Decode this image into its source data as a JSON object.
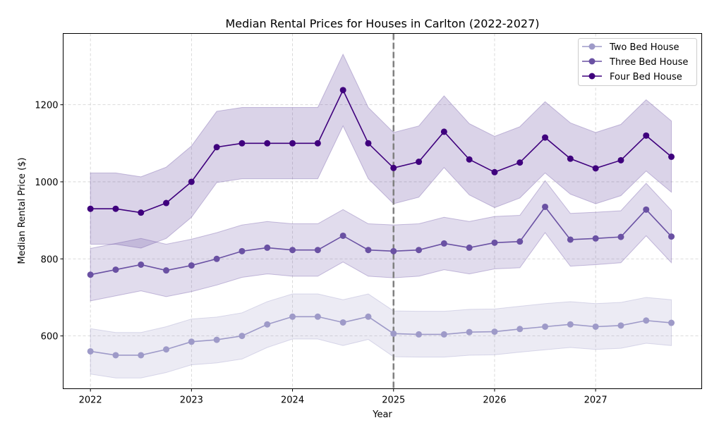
{
  "chart_data": {
    "type": "line",
    "title": "Median Rental Prices for Houses in Carlton (2022-2027)",
    "xlabel": "Year",
    "ylabel": "Median Rental Price ($)",
    "xlim": [
      2021.73,
      2028.05
    ],
    "ylim": [
      463,
      1385
    ],
    "x_ticks": [
      2022,
      2023,
      2024,
      2025,
      2026,
      2027
    ],
    "y_ticks": [
      600,
      800,
      1000,
      1200
    ],
    "grid": true,
    "legend_position": "top-right",
    "reference_line": {
      "x": 2025,
      "style": "dashed",
      "color": "#808080"
    },
    "x": [
      2022.0,
      2022.25,
      2022.5,
      2022.75,
      2023.0,
      2023.25,
      2023.5,
      2023.75,
      2024.0,
      2024.25,
      2024.5,
      2024.75,
      2025.0,
      2025.25,
      2025.5,
      2025.75,
      2026.0,
      2026.25,
      2026.5,
      2026.75,
      2027.0,
      2027.25,
      2027.5,
      2027.75
    ],
    "series": [
      {
        "name": "Two Bed House",
        "color": "#9e9ac8",
        "values": [
          560,
          550,
          550,
          565,
          585,
          590,
          600,
          630,
          650,
          650,
          635,
          650,
          606,
          604,
          604,
          610,
          611,
          618,
          624,
          630,
          624,
          627,
          640,
          634
        ],
        "lower": [
          501,
          491,
          491,
          505,
          525,
          530,
          540,
          570,
          592,
          592,
          575,
          591,
          546,
          545,
          545,
          550,
          551,
          558,
          564,
          570,
          565,
          568,
          581,
          575
        ],
        "upper": [
          619,
          609,
          609,
          624,
          644,
          649,
          660,
          689,
          709,
          709,
          694,
          709,
          665,
          664,
          664,
          669,
          670,
          677,
          684,
          689,
          684,
          687,
          700,
          694
        ]
      },
      {
        "name": "Three Bed House",
        "color": "#6a51a3",
        "values": [
          759,
          772,
          785,
          770,
          783,
          800,
          820,
          829,
          823,
          823,
          860,
          823,
          820,
          823,
          840,
          829,
          842,
          845,
          935,
          850,
          853,
          857,
          928,
          858
        ],
        "lower": [
          691,
          704,
          717,
          702,
          715,
          732,
          752,
          761,
          755,
          755,
          792,
          755,
          751,
          755,
          772,
          761,
          774,
          777,
          868,
          781,
          785,
          790,
          860,
          790
        ],
        "upper": [
          827,
          840,
          853,
          838,
          851,
          868,
          888,
          897,
          891,
          891,
          928,
          891,
          888,
          891,
          908,
          897,
          910,
          913,
          1003,
          918,
          921,
          925,
          996,
          926
        ]
      },
      {
        "name": "Four Bed House",
        "color": "#3f007d",
        "fill_color": "#6a51a3",
        "values": [
          930,
          930,
          920,
          945,
          1000,
          1090,
          1100,
          1100,
          1100,
          1100,
          1238,
          1100,
          1036,
          1052,
          1130,
          1058,
          1025,
          1050,
          1115,
          1060,
          1035,
          1056,
          1120,
          1065
        ],
        "lower": [
          838,
          838,
          828,
          853,
          908,
          998,
          1008,
          1008,
          1008,
          1008,
          1145,
          1008,
          943,
          960,
          1037,
          966,
          933,
          958,
          1023,
          968,
          943,
          964,
          1028,
          973
        ],
        "upper": [
          1023,
          1023,
          1013,
          1038,
          1093,
          1183,
          1193,
          1193,
          1193,
          1193,
          1331,
          1193,
          1128,
          1145,
          1223,
          1151,
          1118,
          1143,
          1208,
          1153,
          1128,
          1149,
          1213,
          1158
        ]
      }
    ]
  }
}
